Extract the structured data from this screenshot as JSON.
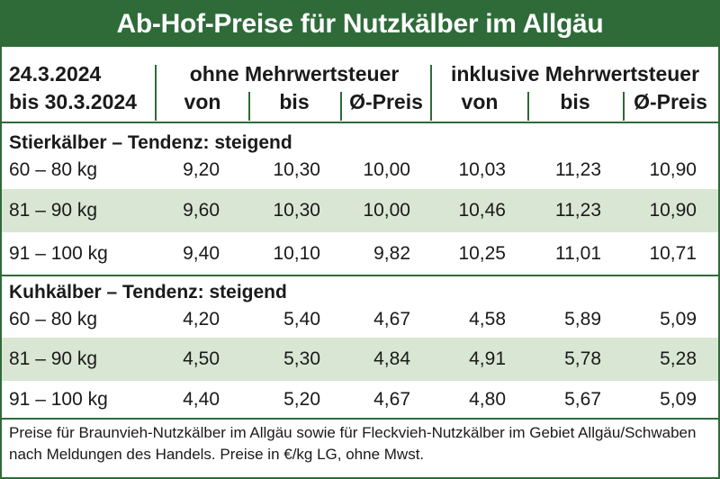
{
  "title": "Ab-Hof-Preise für Nutzkälber im Allgäu",
  "date_range": {
    "line1": "24.3.2024",
    "line2": "bis 30.3.2024"
  },
  "group_headers": {
    "ohne": "ohne Mehrwertsteuer",
    "inkl": "inklusive Mehrwertsteuer"
  },
  "column_headers": [
    "von",
    "bis",
    "Ø-Preis",
    "von",
    "bis",
    "Ø-Preis"
  ],
  "sections": [
    {
      "title": "Stierkälber – Tendenz: steigend",
      "rows": [
        {
          "weight": "60 – 80 kg",
          "values": [
            "9,20",
            "10,30",
            "10,00",
            "10,03",
            "11,23",
            "10,90"
          ]
        },
        {
          "weight": "81 – 90 kg",
          "values": [
            "9,60",
            "10,30",
            "10,00",
            "10,46",
            "11,23",
            "10,90"
          ]
        },
        {
          "weight": "91 – 100 kg",
          "values": [
            "9,40",
            "10,10",
            "9,82",
            "10,25",
            "11,01",
            "10,71"
          ]
        }
      ]
    },
    {
      "title": "Kuhkälber – Tendenz: steigend",
      "rows": [
        {
          "weight": "60 – 80 kg",
          "values": [
            "4,20",
            "5,40",
            "4,67",
            "4,58",
            "5,89",
            "5,09"
          ]
        },
        {
          "weight": "81 – 90 kg",
          "values": [
            "4,50",
            "5,30",
            "4,84",
            "4,91",
            "5,78",
            "5,28"
          ]
        },
        {
          "weight": "91 – 100 kg",
          "values": [
            "4,40",
            "5,20",
            "4,67",
            "4,80",
            "5,67",
            "5,09"
          ]
        }
      ]
    }
  ],
  "footer": "Preise für Braunvieh-Nutzkälber im Allgäu sowie für Fleckvieh-Nutzkälber im Gebiet Allgäu/Schwaben nach Meldungen des Handels. Preise in €/kg LG, ohne Mwst.",
  "colors": {
    "brand_green": "#2e6b39",
    "row_shade": "#d9e6d3"
  }
}
